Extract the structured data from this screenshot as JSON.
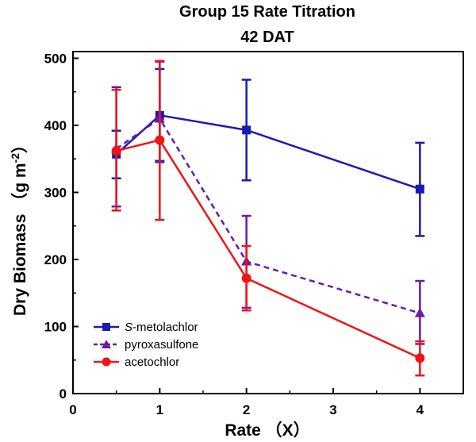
{
  "chart_data": {
    "type": "line",
    "title": "Group 15 Rate Titration",
    "subtitle": "42 DAT",
    "xlabel": "Rate （X）",
    "ylabel": "Dry Biomass （g m",
    "ylabel_sup": "-2",
    "ylabel_close": "）",
    "xlim": [
      0,
      4.5
    ],
    "ylim": [
      0,
      510
    ],
    "x_categories": [
      "0",
      "1",
      "2",
      "3",
      "4"
    ],
    "x_tick_values": [
      0,
      1,
      2,
      3,
      4
    ],
    "y_ticks": [
      0,
      100,
      200,
      300,
      400,
      500
    ],
    "grid": false,
    "legend_position": "bottom-left",
    "series": [
      {
        "name": "S-metolachlor",
        "name_italic": "S",
        "name_rest": "-metolachlor",
        "color": "#1a1ab4",
        "marker": "square",
        "dash": "solid",
        "x": [
          0.5,
          1,
          2,
          4
        ],
        "y": [
          357,
          415,
          393,
          305
        ],
        "err_low": [
          321,
          347,
          318,
          235
        ],
        "err_high": [
          392,
          484,
          468,
          374
        ]
      },
      {
        "name": "pyroxasulfone",
        "color": "#6a1aa8",
        "marker": "triangle",
        "dash": "dashed",
        "x": [
          0.5,
          1,
          2,
          4
        ],
        "y": [
          365,
          410,
          197,
          120
        ],
        "err_low": [
          279,
          345,
          128,
          74
        ],
        "err_high": [
          457,
          495,
          265,
          168
        ]
      },
      {
        "name": "acetochlor",
        "color": "#f01414",
        "marker": "circle",
        "dash": "solid",
        "x": [
          0.5,
          1,
          2,
          4
        ],
        "y": [
          362,
          378,
          172,
          53
        ],
        "err_low": [
          273,
          259,
          124,
          27
        ],
        "err_high": [
          453,
          496,
          220,
          78
        ]
      }
    ]
  }
}
